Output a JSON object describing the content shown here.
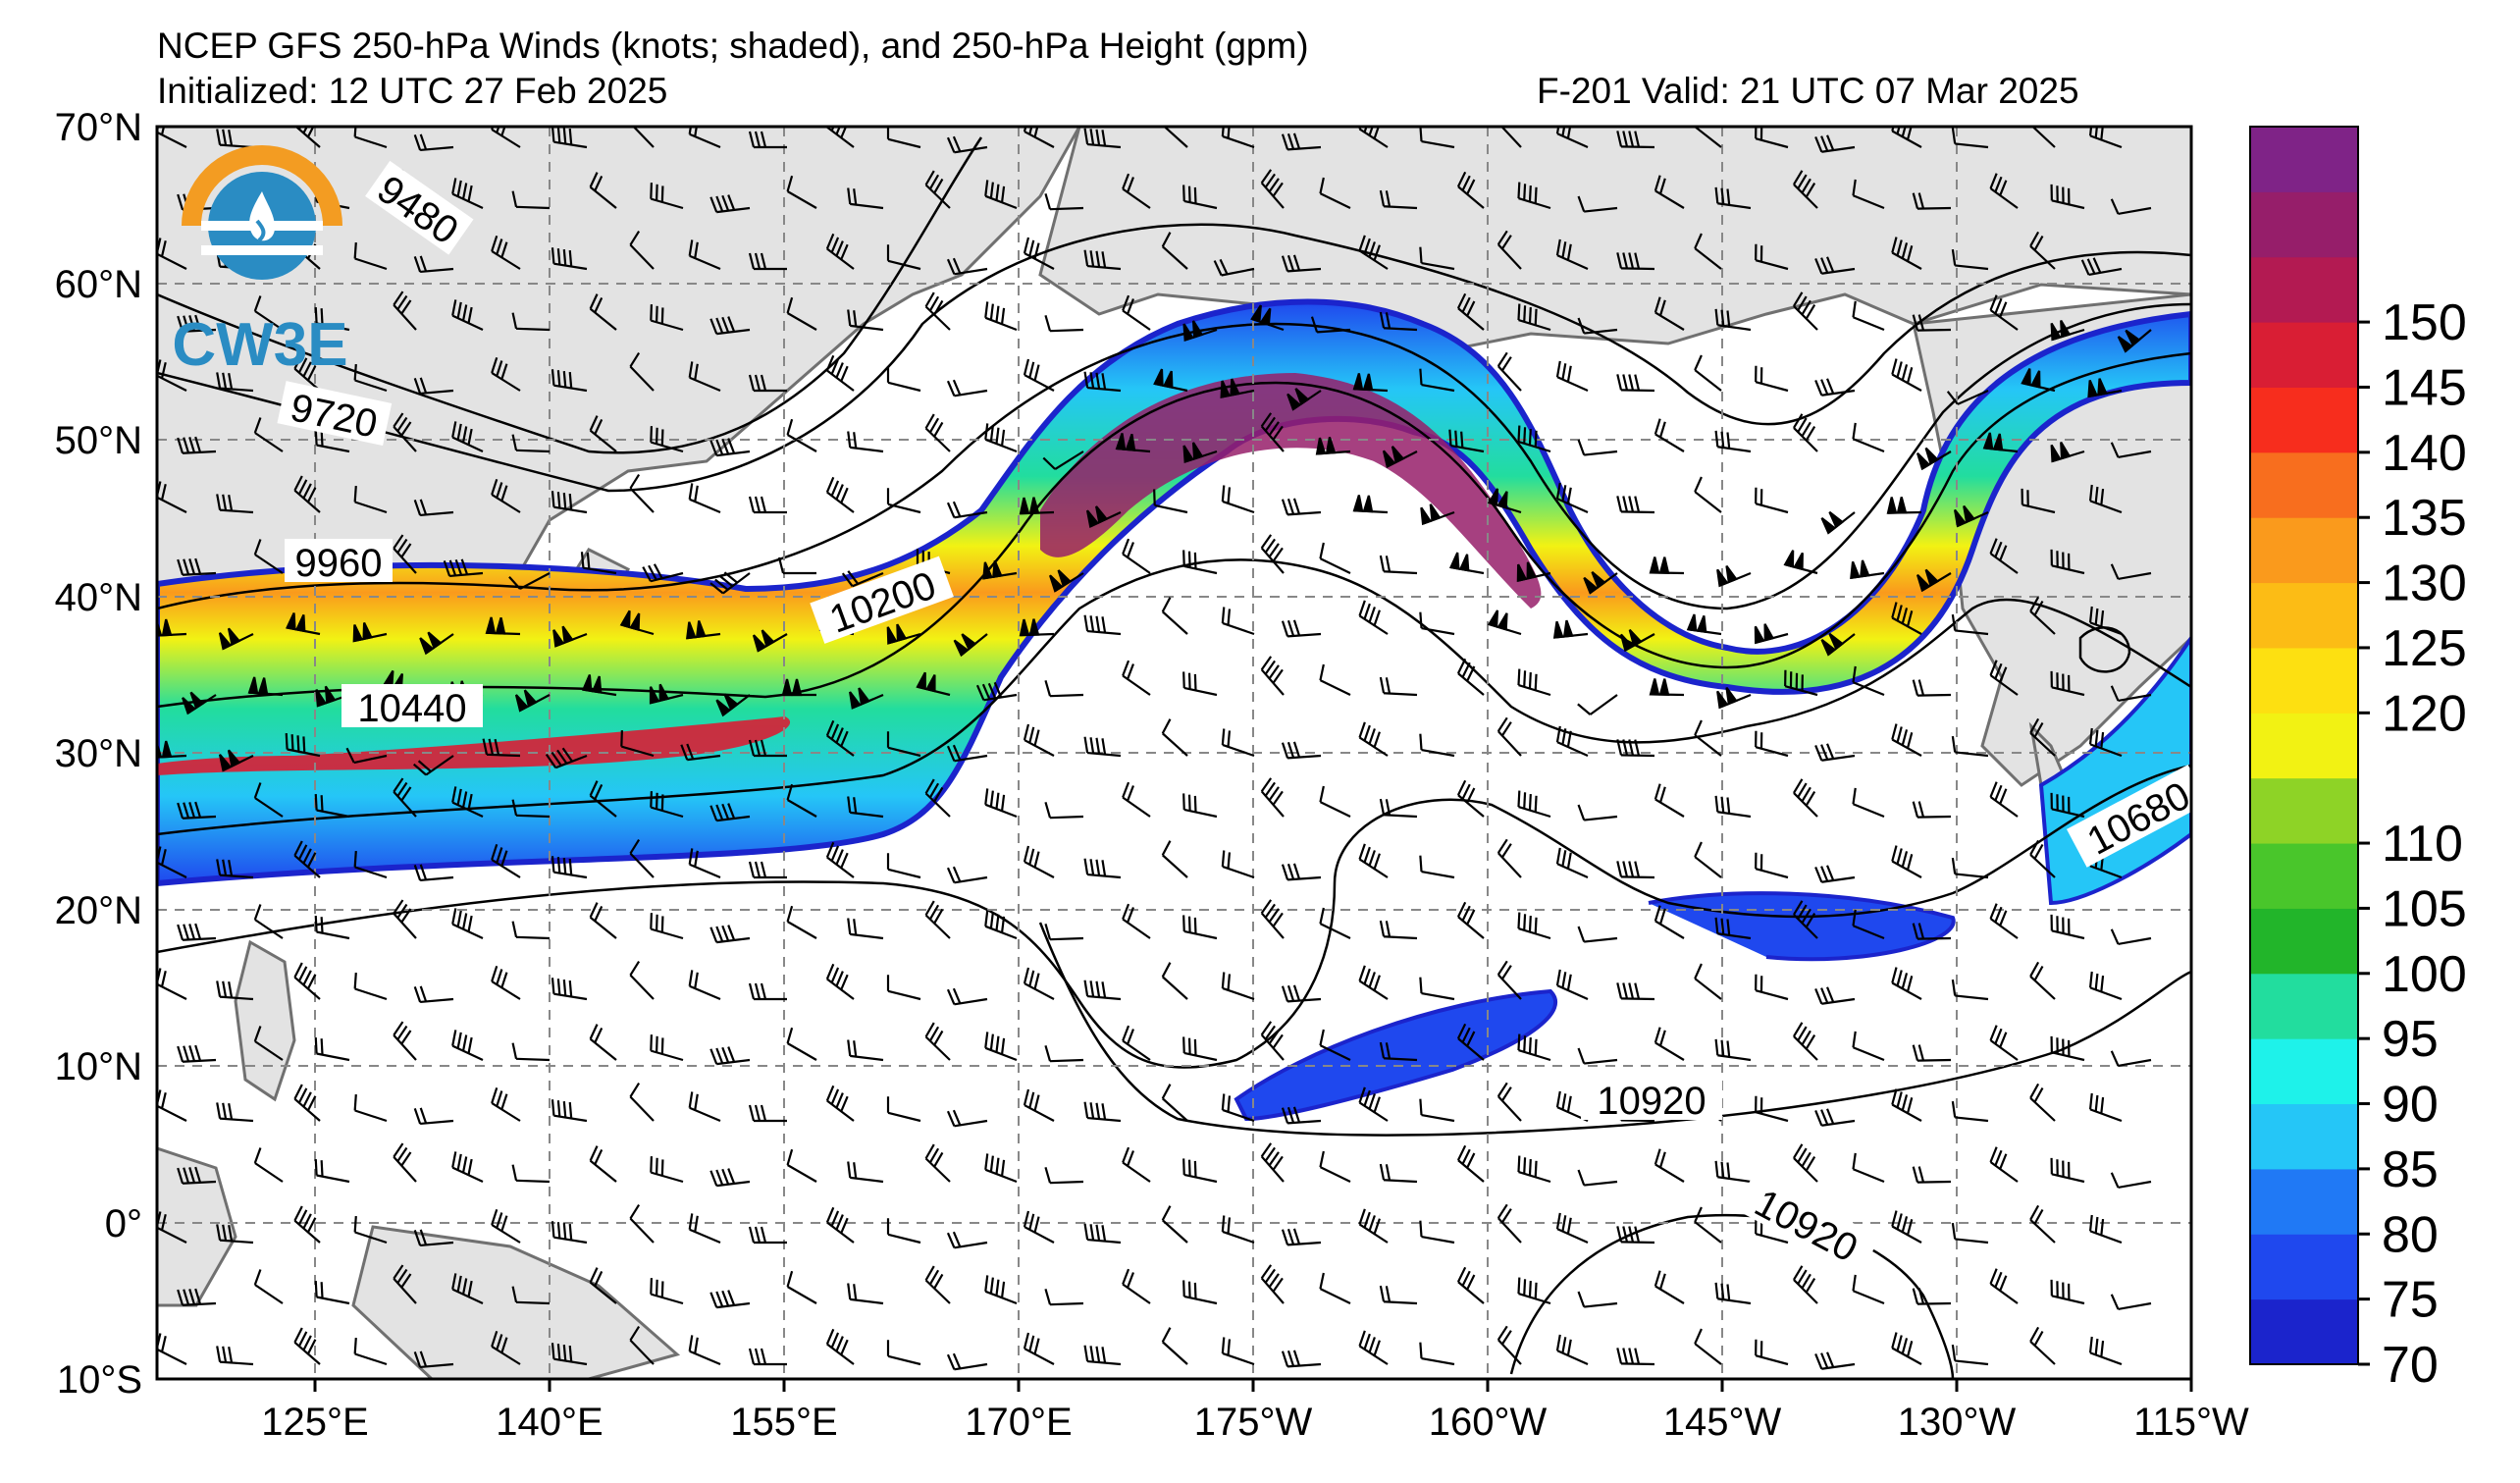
{
  "header": {
    "title": "NCEP GFS 250-hPa Winds (knots; shaded), and 250-hPa Height (gpm)",
    "initialized": "Initialized: 12 UTC 27 Feb 2025",
    "forecast_valid": "F-201  Valid: 21 UTC 07 Mar 2025"
  },
  "logo": {
    "text": "CW3E",
    "icon": "water-drop-sun-logo-icon"
  },
  "map": {
    "lat_labels": [
      "70°N",
      "60°N",
      "50°N",
      "40°N",
      "30°N",
      "20°N",
      "10°N",
      "0°",
      "10°S"
    ],
    "lon_labels": [
      "125°E",
      "140°E",
      "155°E",
      "170°E",
      "175°W",
      "160°W",
      "145°W",
      "130°W",
      "115°W"
    ],
    "contour_labels": [
      "9480",
      "9720",
      "9960",
      "10200",
      "10440",
      "10680",
      "10920",
      "10920"
    ],
    "colors": {
      "land": "#e3e3e3",
      "ocean": "#ffffff",
      "coast": "#707070",
      "grid": "#888888"
    }
  },
  "colorbar": {
    "ticks": [
      "70",
      "75",
      "80",
      "85",
      "90",
      "95",
      "100",
      "105",
      "110",
      "120",
      "125",
      "130",
      "135",
      "140",
      "145",
      "150"
    ],
    "colors": [
      "#1b24cc",
      "#1f48ee",
      "#2079f5",
      "#25c6f7",
      "#1ef2ea",
      "#22dd9e",
      "#22b52a",
      "#49c62b",
      "#8ed326",
      "#f2f213",
      "#fde011",
      "#fcbc15",
      "#fa9a1c",
      "#f86e1e",
      "#f72d1d",
      "#d91e34",
      "#b31a52",
      "#961e6a",
      "#7f2387"
    ],
    "units": "knots"
  }
}
